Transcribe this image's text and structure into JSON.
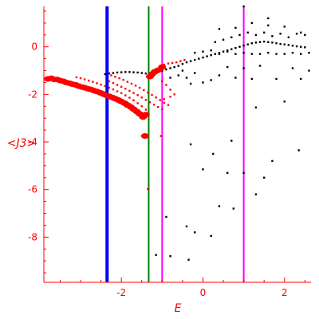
{
  "chart_data": {
    "type": "scatter",
    "title": "",
    "xlabel": "E",
    "ylabel": "<J3>",
    "xlim": [
      -3.9,
      2.65
    ],
    "ylim": [
      -9.9,
      1.7
    ],
    "xticks": [
      -2,
      0,
      2
    ],
    "yticks": [
      0,
      -2,
      -4,
      -6,
      -8
    ],
    "grid": false,
    "axis_color": "#ff0000",
    "vertical_lines": [
      {
        "x": -2.35,
        "color": "#0000ff",
        "width": "thick"
      },
      {
        "x": -1.33,
        "color": "#008000",
        "width": "thin"
      },
      {
        "x": -1.0,
        "color": "#ff00ff",
        "width": "thin"
      },
      {
        "x": 1.0,
        "color": "#ff00ff",
        "width": "thin"
      }
    ],
    "series": [
      {
        "color": "#ff0000",
        "marker": "large",
        "points": [
          [
            -3.8,
            -1.35
          ],
          [
            -3.72,
            -1.32
          ],
          [
            -3.65,
            -1.37
          ],
          [
            -3.58,
            -1.37
          ],
          [
            -3.5,
            -1.42
          ],
          [
            -3.42,
            -1.45
          ],
          [
            -3.35,
            -1.5
          ],
          [
            -3.27,
            -1.53
          ],
          [
            -3.2,
            -1.57
          ],
          [
            -3.12,
            -1.6
          ],
          [
            -3.05,
            -1.65
          ],
          [
            -2.97,
            -1.69
          ],
          [
            -2.9,
            -1.72
          ],
          [
            -2.82,
            -1.76
          ],
          [
            -2.75,
            -1.79
          ],
          [
            -2.67,
            -1.84
          ],
          [
            -2.6,
            -1.88
          ],
          [
            -2.52,
            -1.93
          ],
          [
            -2.45,
            -1.98
          ],
          [
            -2.38,
            -2.03
          ],
          [
            -2.3,
            -2.08
          ],
          [
            -2.22,
            -2.13
          ],
          [
            -2.15,
            -2.18
          ],
          [
            -2.07,
            -2.24
          ],
          [
            -2.0,
            -2.3
          ],
          [
            -1.92,
            -2.37
          ],
          [
            -1.85,
            -2.45
          ],
          [
            -1.77,
            -2.53
          ],
          [
            -1.7,
            -2.62
          ],
          [
            -1.62,
            -2.72
          ],
          [
            -1.55,
            -2.82
          ],
          [
            -1.47,
            -2.95
          ],
          [
            -1.4,
            -2.85
          ],
          [
            -1.3,
            -1.25
          ],
          [
            -1.25,
            -1.15
          ],
          [
            -1.18,
            -1.05
          ],
          [
            -1.1,
            -0.98
          ],
          [
            -1.0,
            -0.85
          ],
          [
            -1.42,
            -3.75
          ]
        ]
      },
      {
        "color": "#ff0000",
        "marker": "small",
        "points": [
          [
            -3.1,
            -1.28
          ],
          [
            -3.0,
            -1.32
          ],
          [
            -2.9,
            -1.37
          ],
          [
            -2.8,
            -1.42
          ],
          [
            -2.7,
            -1.47
          ],
          [
            -2.6,
            -1.53
          ],
          [
            -2.5,
            -1.59
          ],
          [
            -2.4,
            -1.65
          ],
          [
            -2.3,
            -1.72
          ],
          [
            -2.2,
            -1.79
          ],
          [
            -2.1,
            -1.87
          ],
          [
            -2.0,
            -1.95
          ],
          [
            -1.9,
            -2.04
          ],
          [
            -1.8,
            -2.14
          ],
          [
            -1.7,
            -2.25
          ],
          [
            -1.6,
            -2.37
          ],
          [
            -1.5,
            -2.5
          ],
          [
            -1.4,
            -2.64
          ],
          [
            -2.25,
            -1.2
          ],
          [
            -2.15,
            -1.26
          ],
          [
            -2.05,
            -1.32
          ],
          [
            -1.95,
            -1.39
          ],
          [
            -1.85,
            -1.47
          ],
          [
            -1.75,
            -1.55
          ],
          [
            -1.65,
            -1.63
          ],
          [
            -1.55,
            -1.72
          ],
          [
            -1.45,
            -1.82
          ],
          [
            -1.35,
            -1.92
          ],
          [
            -1.25,
            -2.02
          ],
          [
            -1.15,
            -2.13
          ],
          [
            -1.05,
            -2.24
          ],
          [
            -0.95,
            -2.35
          ],
          [
            -0.85,
            -2.45
          ],
          [
            -2.3,
            -1.45
          ],
          [
            -2.2,
            -1.52
          ],
          [
            -2.1,
            -1.6
          ],
          [
            -2.0,
            -1.68
          ],
          [
            -1.9,
            -1.76
          ],
          [
            -1.8,
            -1.85
          ],
          [
            -1.7,
            -1.94
          ],
          [
            -1.6,
            -2.03
          ],
          [
            -1.5,
            -2.13
          ],
          [
            -1.4,
            -2.23
          ],
          [
            -1.3,
            -2.33
          ],
          [
            -1.2,
            -2.43
          ],
          [
            -1.1,
            -2.53
          ],
          [
            -1.0,
            -2.62
          ],
          [
            -1.0,
            -1.45
          ],
          [
            -0.9,
            -1.6
          ],
          [
            -0.8,
            -1.8
          ],
          [
            -0.7,
            -2.0
          ],
          [
            -0.95,
            -0.75
          ],
          [
            -0.85,
            -0.7
          ],
          [
            -0.75,
            -0.68
          ],
          [
            -0.65,
            -0.65
          ],
          [
            -0.55,
            -0.6
          ],
          [
            -0.45,
            -0.55
          ],
          [
            -1.35,
            -5.98
          ],
          [
            -1.03,
            -3.75
          ],
          [
            -0.95,
            -2.2
          ],
          [
            -0.8,
            -2.1
          ]
        ]
      },
      {
        "color": "#000000",
        "marker": "small",
        "points": [
          [
            -2.4,
            -1.15
          ],
          [
            -2.3,
            -1.12
          ],
          [
            -2.2,
            -1.1
          ],
          [
            -2.1,
            -1.08
          ],
          [
            -2.0,
            -1.07
          ],
          [
            -1.9,
            -1.06
          ],
          [
            -1.8,
            -1.06
          ],
          [
            -1.7,
            -1.07
          ],
          [
            -1.6,
            -1.08
          ],
          [
            -1.5,
            -1.1
          ],
          [
            -1.4,
            -1.12
          ],
          [
            -1.3,
            -1.15
          ],
          [
            -1.2,
            -1.1
          ],
          [
            -1.1,
            -1.05
          ],
          [
            -1.0,
            -1.0
          ],
          [
            -0.9,
            -0.95
          ],
          [
            -0.8,
            -0.9
          ],
          [
            -0.7,
            -0.85
          ],
          [
            -0.6,
            -0.8
          ],
          [
            -0.5,
            -0.72
          ],
          [
            -0.4,
            -0.65
          ],
          [
            -0.3,
            -0.6
          ],
          [
            -0.2,
            -0.55
          ],
          [
            -0.1,
            -0.5
          ],
          [
            0.0,
            -0.45
          ],
          [
            0.1,
            -0.4
          ],
          [
            0.2,
            -0.35
          ],
          [
            0.3,
            -0.3
          ],
          [
            0.4,
            -0.25
          ],
          [
            0.5,
            -0.2
          ],
          [
            0.6,
            -0.15
          ],
          [
            0.7,
            -0.1
          ],
          [
            0.8,
            -0.05
          ],
          [
            0.9,
            0.0
          ],
          [
            1.0,
            0.05
          ],
          [
            1.1,
            0.1
          ],
          [
            1.2,
            0.15
          ],
          [
            1.3,
            0.18
          ],
          [
            1.4,
            0.2
          ],
          [
            1.5,
            0.22
          ],
          [
            1.6,
            0.2
          ],
          [
            1.7,
            0.18
          ],
          [
            1.8,
            0.15
          ],
          [
            1.9,
            0.12
          ],
          [
            2.0,
            0.1
          ],
          [
            2.1,
            0.08
          ],
          [
            2.2,
            0.05
          ],
          [
            2.3,
            0.02
          ],
          [
            2.4,
            0.0
          ],
          [
            2.5,
            -0.02
          ],
          [
            -0.2,
            -0.25
          ],
          [
            0.0,
            -0.2
          ],
          [
            0.2,
            -0.15
          ],
          [
            0.4,
            -0.3
          ],
          [
            0.6,
            -0.2
          ],
          [
            0.8,
            -0.3
          ],
          [
            1.0,
            -0.25
          ],
          [
            1.2,
            -0.3
          ],
          [
            1.4,
            -0.3
          ],
          [
            1.6,
            -0.25
          ],
          [
            1.8,
            -0.3
          ],
          [
            2.0,
            -0.3
          ],
          [
            2.2,
            -0.25
          ],
          [
            2.4,
            -0.3
          ],
          [
            2.6,
            -0.25
          ],
          [
            0.3,
            0.2
          ],
          [
            0.5,
            0.3
          ],
          [
            0.7,
            0.4
          ],
          [
            0.9,
            0.5
          ],
          [
            1.1,
            0.6
          ],
          [
            1.3,
            0.5
          ],
          [
            1.5,
            0.6
          ],
          [
            1.7,
            0.45
          ],
          [
            1.9,
            0.55
          ],
          [
            2.1,
            0.4
          ],
          [
            2.3,
            0.55
          ],
          [
            2.5,
            0.5
          ],
          [
            0.4,
            0.75
          ],
          [
            0.8,
            0.8
          ],
          [
            1.2,
            1.0
          ],
          [
            1.6,
            0.9
          ],
          [
            2.0,
            0.85
          ],
          [
            2.4,
            0.6
          ],
          [
            1.0,
            1.7
          ],
          [
            1.6,
            1.2
          ],
          [
            -0.6,
            -1.2
          ],
          [
            -0.4,
            -1.3
          ],
          [
            -0.2,
            -1.1
          ],
          [
            0.0,
            -1.5
          ],
          [
            0.4,
            -1.2
          ],
          [
            0.8,
            -1.3
          ],
          [
            1.2,
            -1.35
          ],
          [
            1.8,
            -1.35
          ],
          [
            2.4,
            -1.35
          ],
          [
            -0.3,
            -1.55
          ],
          [
            0.2,
            -1.4
          ],
          [
            0.6,
            -0.85
          ],
          [
            1.4,
            -0.8
          ],
          [
            2.2,
            -0.9
          ],
          [
            2.6,
            -1.0
          ],
          [
            1.0,
            -0.9
          ],
          [
            -0.5,
            -1.0
          ],
          [
            -0.8,
            -1.3
          ],
          [
            1.3,
            -2.55
          ],
          [
            2.0,
            -2.3
          ],
          [
            -0.3,
            -4.1
          ],
          [
            0.25,
            -4.5
          ],
          [
            0.7,
            -3.95
          ],
          [
            1.7,
            -4.8
          ],
          [
            2.35,
            -4.35
          ],
          [
            0.0,
            -5.15
          ],
          [
            0.6,
            -5.3
          ],
          [
            1.0,
            -5.3
          ],
          [
            1.5,
            -5.5
          ],
          [
            1.3,
            -6.2
          ],
          [
            0.4,
            -6.7
          ],
          [
            0.75,
            -6.8
          ],
          [
            -0.4,
            -7.55
          ],
          [
            -0.2,
            -7.8
          ],
          [
            0.2,
            -7.95
          ],
          [
            -0.9,
            -7.15
          ],
          [
            -1.15,
            -8.75
          ],
          [
            -0.8,
            -8.8
          ],
          [
            -0.35,
            -8.95
          ]
        ]
      }
    ]
  },
  "labels": {
    "x_tick_labels": [
      "-2",
      "0",
      "2"
    ],
    "y_tick_labels": [
      "0",
      "-2",
      "-4",
      "-6",
      "-8"
    ]
  }
}
